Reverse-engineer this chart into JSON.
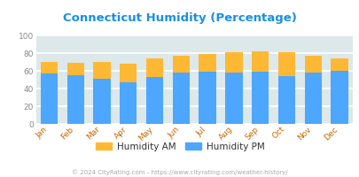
{
  "months": [
    "Jan",
    "Feb",
    "Mar",
    "Apr",
    "May",
    "Jun",
    "Jul",
    "Aug",
    "Sep",
    "Oct",
    "Nov",
    "Dec"
  ],
  "humidity_pm": [
    57,
    55,
    51,
    47,
    53,
    58,
    59,
    58,
    59,
    54,
    58,
    60
  ],
  "humidity_am_total": [
    70,
    69,
    70,
    68,
    74,
    77,
    79,
    81,
    82,
    81,
    77,
    74
  ],
  "color_pm": "#4da6ff",
  "color_am": "#ffb833",
  "bg_plot": "#dce8ea",
  "bg_fig": "#ffffff",
  "title": "Connecticut Humidity (Percentage)",
  "title_color": "#1a8fe3",
  "footer": "© 2024 CityRating.com - https://www.cityrating.com/weather-history/",
  "legend_am": "Humidity AM",
  "legend_pm": "Humidity PM",
  "ylim": [
    0,
    100
  ],
  "yticks": [
    0,
    20,
    40,
    60,
    80,
    100
  ],
  "grid_color": "#ffffff",
  "tick_color": "#cc6600",
  "ytick_color": "#888888",
  "footer_color": "#aaaaaa",
  "legend_text_color": "#333333"
}
